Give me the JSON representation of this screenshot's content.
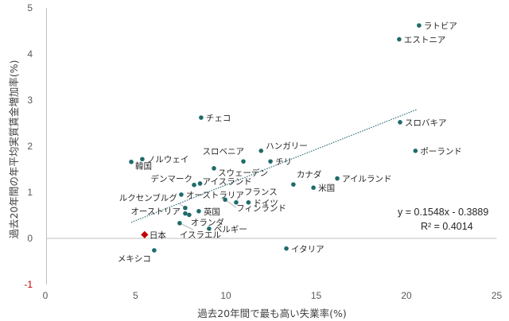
{
  "chart_data": {
    "type": "scatter",
    "title": "",
    "xlabel": "過去20年間で最も高い失業率(%)",
    "ylabel": "過去20年間の年平均実質賃金増加率(%)",
    "xlim": [
      0,
      25
    ],
    "ylim": [
      -1,
      5
    ],
    "x_ticks": [
      "0",
      "5",
      "10",
      "15",
      "20",
      "25"
    ],
    "y_ticks": [
      "-1",
      "0",
      "1",
      "2",
      "3",
      "4",
      "5"
    ],
    "grid": false,
    "legend": "none",
    "colors": {
      "point": "#1f6b6b",
      "highlight": "#c00000",
      "trendline": "#2e6f7a",
      "negative_tick": "#c00000"
    },
    "points": [
      {
        "label": "ラトビア",
        "x": 20.7,
        "y": 4.62,
        "label_pos": "right"
      },
      {
        "label": "エストニア",
        "x": 19.6,
        "y": 4.32,
        "label_pos": "right"
      },
      {
        "label": "スロバキア",
        "x": 19.65,
        "y": 2.52,
        "label_pos": "right"
      },
      {
        "label": "ポーランド",
        "x": 20.5,
        "y": 1.9,
        "label_pos": "right"
      },
      {
        "label": "チェコ",
        "x": 8.63,
        "y": 2.62,
        "label_pos": "right"
      },
      {
        "label": "ハンガリー",
        "x": 11.95,
        "y": 1.9,
        "label_pos": "right-up"
      },
      {
        "label": "スロベニア",
        "x": 10.97,
        "y": 1.67,
        "label_pos": "up-left"
      },
      {
        "label": "チリ",
        "x": 12.47,
        "y": 1.67,
        "label_pos": "right"
      },
      {
        "label": "ノルウェイ",
        "x": 5.37,
        "y": 1.72,
        "label_pos": "right"
      },
      {
        "label": "韓国",
        "x": 4.76,
        "y": 1.66,
        "label_pos": "right-down"
      },
      {
        "label": "スウェーデン",
        "x": 9.34,
        "y": 1.52,
        "label_pos": "right-down"
      },
      {
        "label": "デンマーク",
        "x": 8.24,
        "y": 1.16,
        "label_pos": "left-up"
      },
      {
        "label": "アイスランド",
        "x": 8.57,
        "y": 1.19,
        "label_pos": "right"
      },
      {
        "label": "カナダ",
        "x": 13.74,
        "y": 1.17,
        "label_pos": "up-right"
      },
      {
        "label": "アイルランド",
        "x": 16.17,
        "y": 1.3,
        "label_pos": "right"
      },
      {
        "label": "米国",
        "x": 14.85,
        "y": 1.1,
        "label_pos": "right"
      },
      {
        "label": "オーストラリア",
        "x": 7.53,
        "y": 0.95,
        "label_pos": "right"
      },
      {
        "label": "フランス",
        "x": 10.57,
        "y": 0.78,
        "label_pos": "up-right"
      },
      {
        "label": "ドイツ",
        "x": 11.25,
        "y": 0.78,
        "label_pos": "right"
      },
      {
        "label": "フィンランド",
        "x": 9.96,
        "y": 0.84,
        "label_pos": "down-right"
      },
      {
        "label": "ルクセンブルグ",
        "x": 7.75,
        "y": 0.66,
        "label_pos": "left"
      },
      {
        "label": "英国",
        "x": 8.5,
        "y": 0.59,
        "label_pos": "right"
      },
      {
        "label": "オーストリア",
        "x": 7.75,
        "y": 0.54,
        "label_pos": "left"
      },
      {
        "label": "オランダ",
        "x": 7.97,
        "y": 0.51,
        "label_pos": "down-right"
      },
      {
        "label": "イスラエル",
        "x": 7.44,
        "y": 0.33,
        "label_pos": "down-right"
      },
      {
        "label": "ベルギー",
        "x": 9.07,
        "y": 0.21,
        "label_pos": "right"
      },
      {
        "label": "日本",
        "x": 5.5,
        "y": 0.08,
        "label_pos": "right",
        "highlight": true
      },
      {
        "label": "メキシコ",
        "x": 6.03,
        "y": -0.26,
        "label_pos": "down-left"
      },
      {
        "label": "イタリア",
        "x": 13.35,
        "y": -0.22,
        "label_pos": "right"
      }
    ],
    "trendline": {
      "type": "linear",
      "slope": 0.1548,
      "intercept": -0.3889,
      "x_range": [
        4.76,
        20.6
      ],
      "equation_text": "y = 0.1548x - 0.3889",
      "r2_text": "R² = 0.4014"
    }
  }
}
